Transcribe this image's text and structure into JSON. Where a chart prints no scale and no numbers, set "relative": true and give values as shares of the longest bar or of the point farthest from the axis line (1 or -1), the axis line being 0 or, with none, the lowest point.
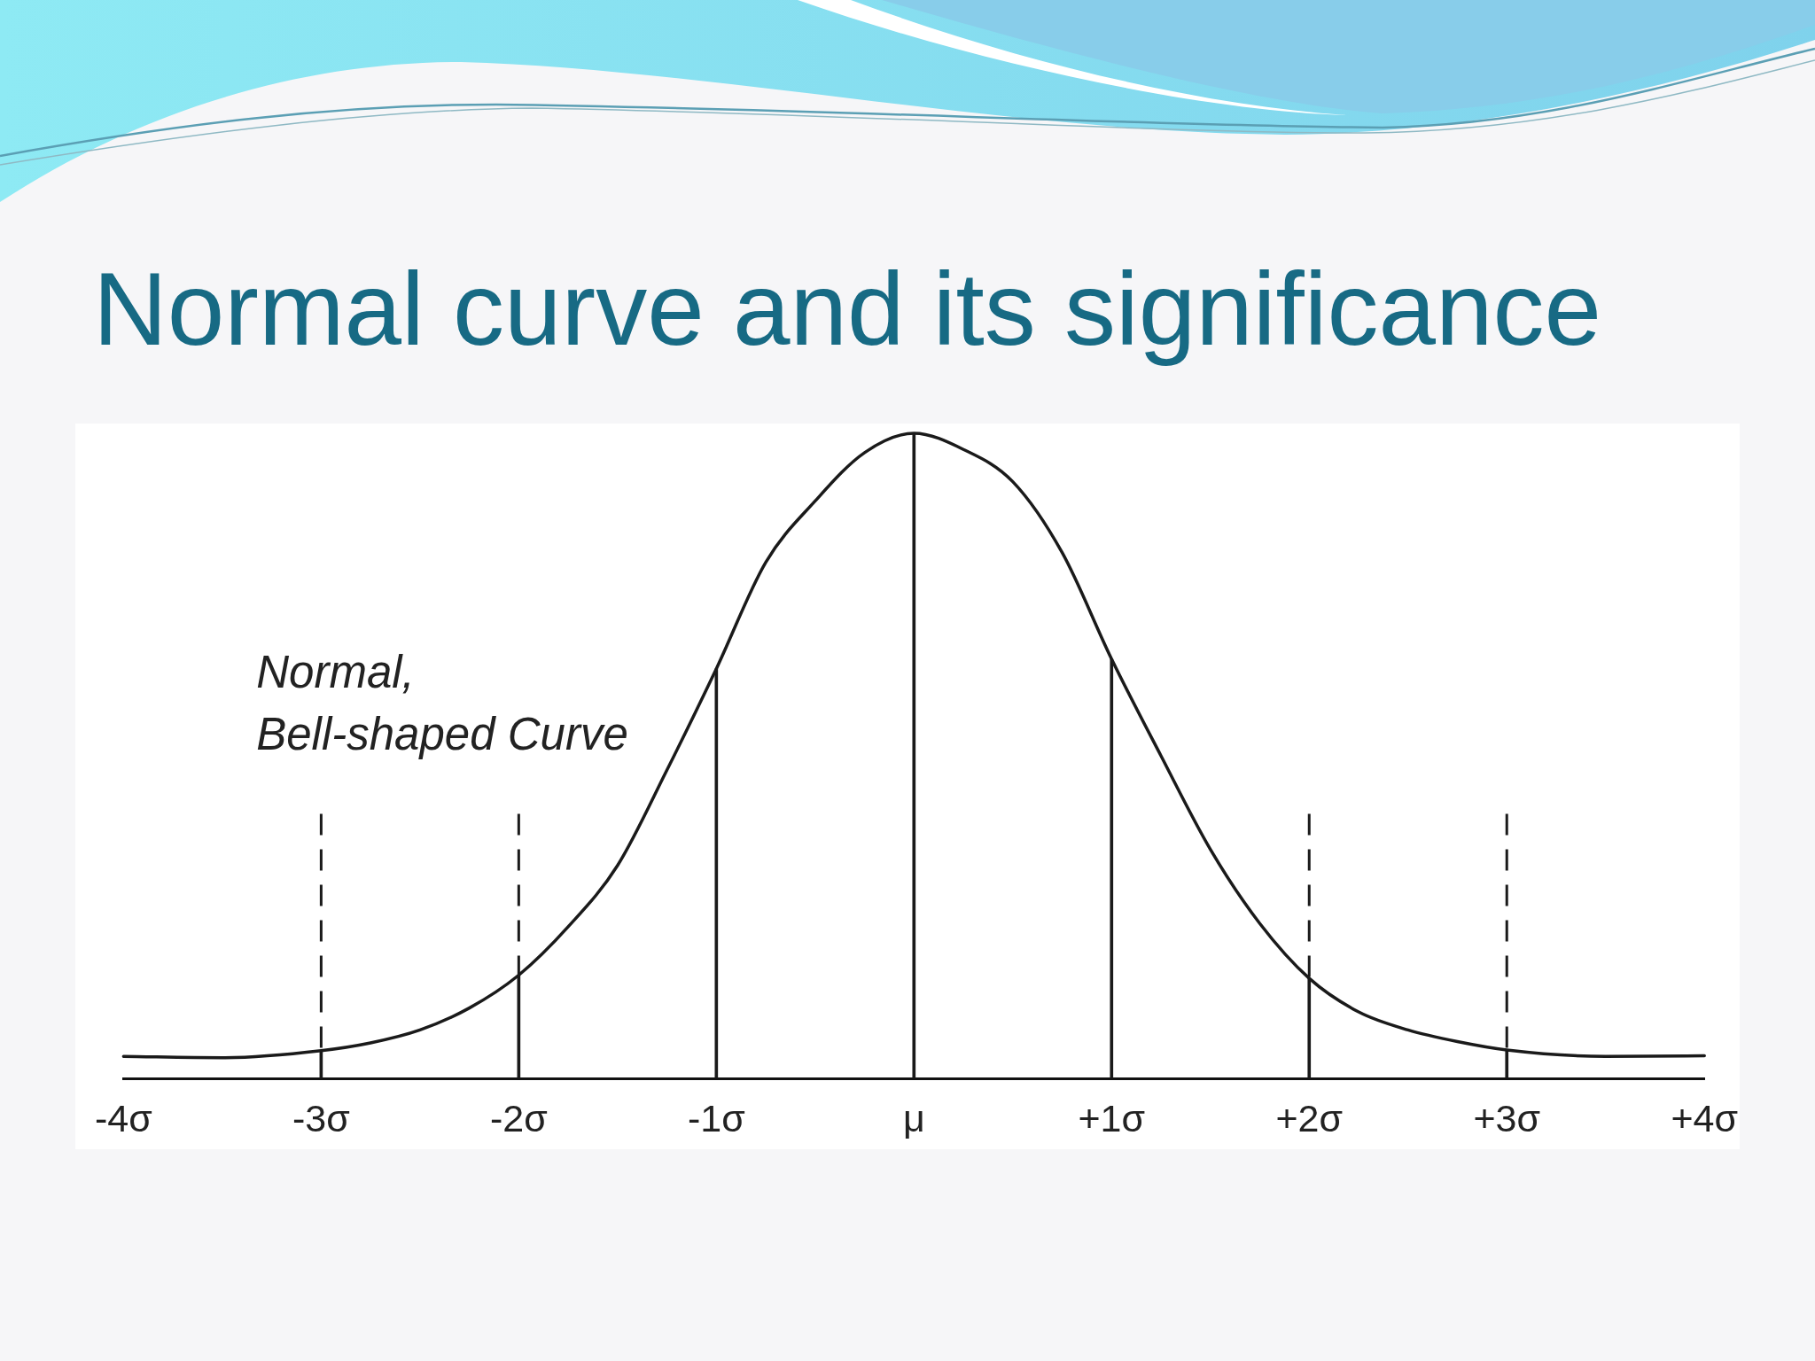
{
  "chart_data": {
    "type": "line",
    "title": "Normal curve and its significance",
    "annotations": [
      "Normal,\nBell-shaped Curve"
    ],
    "x": [
      -4,
      -3.5,
      -3,
      -2.75,
      -2.5,
      -2.25,
      -2,
      -1.75,
      -1.5,
      -1.25,
      -1,
      -0.75,
      -0.5,
      -0.25,
      0,
      0.25,
      0.5,
      0.75,
      1,
      1.25,
      1.5,
      1.75,
      2,
      2.25,
      2.5,
      2.75,
      3,
      3.5,
      4
    ],
    "series": [
      {
        "color": "#1a1a1a",
        "values": [
          0.034,
          0.032,
          0.043,
          0.055,
          0.075,
          0.109,
          0.16,
          0.235,
          0.33,
          0.478,
          0.635,
          0.8,
          0.895,
          0.97,
          1,
          0.975,
          0.925,
          0.815,
          0.65,
          0.5,
          0.355,
          0.24,
          0.155,
          0.103,
          0.075,
          0.057,
          0.044,
          0.034,
          0.035
        ]
      },
      {
        "type": "bar",
        "color": "#1a1a1a",
        "x": [
          -3,
          -2,
          -1,
          0,
          1,
          2,
          3
        ],
        "values": [
          0.043,
          0.16,
          0.635,
          1,
          0.65,
          0.155,
          0.044
        ]
      }
    ],
    "relative": true,
    "xlim": [
      -4,
      4
    ],
    "xticks": [
      {
        "value": -4,
        "label": "-4σ"
      },
      {
        "value": -3,
        "label": "-3σ"
      },
      {
        "value": -2,
        "label": "-2σ"
      },
      {
        "value": -1,
        "label": "-1σ"
      },
      {
        "value": 0,
        "label": "μ"
      },
      {
        "value": 1,
        "label": "+1σ"
      },
      {
        "value": 2,
        "label": "+2σ"
      },
      {
        "value": 3,
        "label": "+3σ"
      },
      {
        "value": 4,
        "label": "+4σ"
      }
    ],
    "ref_lines": [
      {
        "axis": "x",
        "value": -3,
        "line_style": "dashed",
        "color": "#1a1a1a"
      },
      {
        "axis": "x",
        "value": -2,
        "line_style": "dashed",
        "color": "#1a1a1a"
      },
      {
        "axis": "x",
        "value": 2,
        "line_style": "dashed",
        "color": "#1a1a1a"
      },
      {
        "axis": "x",
        "value": 3,
        "line_style": "dashed",
        "color": "#1a1a1a"
      }
    ],
    "grid": false,
    "legend": false,
    "marker": "none",
    "tick_labels": "x"
  }
}
